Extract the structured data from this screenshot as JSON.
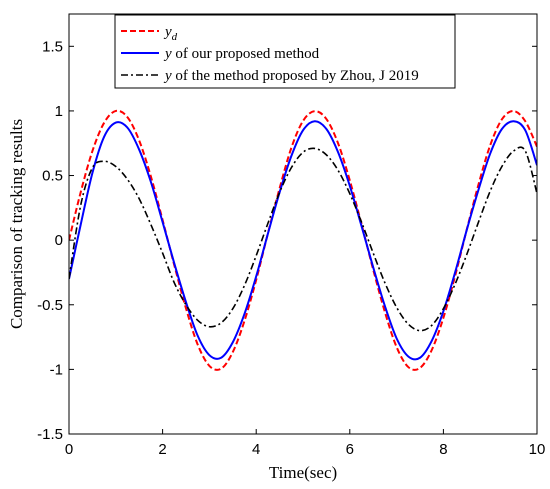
{
  "chart_data": {
    "type": "line",
    "xlabel": "Time(sec)",
    "ylabel": "Comparison of tracking results",
    "xlim": [
      0,
      10
    ],
    "ylim": [
      -1.5,
      1.75
    ],
    "x_ticks": [
      "0",
      "2",
      "4",
      "6",
      "8",
      "10"
    ],
    "y_ticks": [
      "-1.5",
      "-1",
      "-0.5",
      "0",
      "0.5",
      "1",
      "1.5"
    ],
    "legend_position": "top",
    "grid": false,
    "series": [
      {
        "name": "y_d",
        "legend_symbol": "y",
        "legend_subscript": "d",
        "legend_rest": "",
        "color": "#ff0000",
        "dash": "dashed",
        "x": [
          0,
          0.25,
          0.5,
          0.75,
          1.0,
          1.25,
          1.5,
          1.75,
          2.0,
          2.25,
          2.5,
          2.75,
          3.0,
          3.25,
          3.5,
          3.75,
          4.0,
          4.25,
          4.5,
          4.75,
          5.0,
          5.25,
          5.5,
          5.75,
          6.0,
          6.25,
          6.5,
          6.75,
          7.0,
          7.25,
          7.5,
          7.75,
          8.0,
          8.25,
          8.5,
          8.75,
          9.0,
          9.25,
          9.5,
          9.75,
          10.0
        ],
        "y": [
          0,
          0.371,
          0.689,
          0.908,
          1.0,
          0.951,
          0.771,
          0.492,
          0.156,
          -0.194,
          -0.528,
          -0.808,
          -0.973,
          -0.995,
          -0.866,
          -0.624,
          -0.307,
          0.052,
          0.401,
          0.713,
          0.922,
          0.998,
          0.937,
          0.749,
          0.462,
          0.125,
          -0.228,
          -0.556,
          -0.827,
          -0.982,
          -0.989,
          -0.851,
          -0.601,
          -0.277,
          0.083,
          0.431,
          0.734,
          0.935,
          0.999,
          0.92,
          0.723
        ]
      },
      {
        "name": "y of our proposed method",
        "legend_symbol": "y",
        "legend_subscript": "",
        "legend_rest": " of our proposed method",
        "color": "#0000ff",
        "dash": "solid",
        "x": [
          0,
          0.25,
          0.5,
          0.75,
          1.0,
          1.25,
          1.5,
          1.75,
          2.0,
          2.25,
          2.5,
          2.75,
          3.0,
          3.25,
          3.5,
          3.75,
          4.0,
          4.25,
          4.5,
          4.75,
          5.0,
          5.25,
          5.5,
          5.75,
          6.0,
          6.25,
          6.5,
          6.75,
          7.0,
          7.25,
          7.5,
          7.75,
          8.0,
          8.25,
          8.5,
          8.75,
          9.0,
          9.25,
          9.5,
          9.75,
          10.0
        ],
        "y": [
          -0.3,
          0.12,
          0.52,
          0.8,
          0.91,
          0.87,
          0.7,
          0.45,
          0.14,
          -0.18,
          -0.48,
          -0.74,
          -0.89,
          -0.91,
          -0.79,
          -0.57,
          -0.28,
          0.05,
          0.37,
          0.65,
          0.85,
          0.92,
          0.86,
          0.68,
          0.42,
          0.11,
          -0.21,
          -0.51,
          -0.76,
          -0.9,
          -0.91,
          -0.78,
          -0.55,
          -0.25,
          0.08,
          0.39,
          0.67,
          0.86,
          0.92,
          0.85,
          0.58
        ]
      },
      {
        "name": "y of the method proposed by Zhou, J 2019",
        "legend_symbol": "y",
        "legend_subscript": "",
        "legend_rest": " of the method proposed by Zhou, J 2019",
        "color": "#000000",
        "dash": "dashdot",
        "x": [
          0,
          0.25,
          0.5,
          0.75,
          1.0,
          1.25,
          1.5,
          1.75,
          2.0,
          2.25,
          2.5,
          2.75,
          3.0,
          3.25,
          3.5,
          3.75,
          4.0,
          4.25,
          4.5,
          4.75,
          5.0,
          5.25,
          5.5,
          5.75,
          6.0,
          6.25,
          6.5,
          6.75,
          7.0,
          7.25,
          7.5,
          7.75,
          8.0,
          8.25,
          8.5,
          8.75,
          9.0,
          9.25,
          9.5,
          9.75,
          10.0
        ],
        "y": [
          -0.3,
          0.27,
          0.56,
          0.61,
          0.57,
          0.47,
          0.32,
          0.12,
          -0.1,
          -0.33,
          -0.5,
          -0.62,
          -0.67,
          -0.64,
          -0.53,
          -0.35,
          -0.12,
          0.13,
          0.37,
          0.56,
          0.68,
          0.71,
          0.66,
          0.54,
          0.36,
          0.14,
          -0.1,
          -0.33,
          -0.52,
          -0.65,
          -0.7,
          -0.66,
          -0.53,
          -0.34,
          -0.11,
          0.14,
          0.38,
          0.57,
          0.69,
          0.69,
          0.36
        ]
      }
    ]
  }
}
